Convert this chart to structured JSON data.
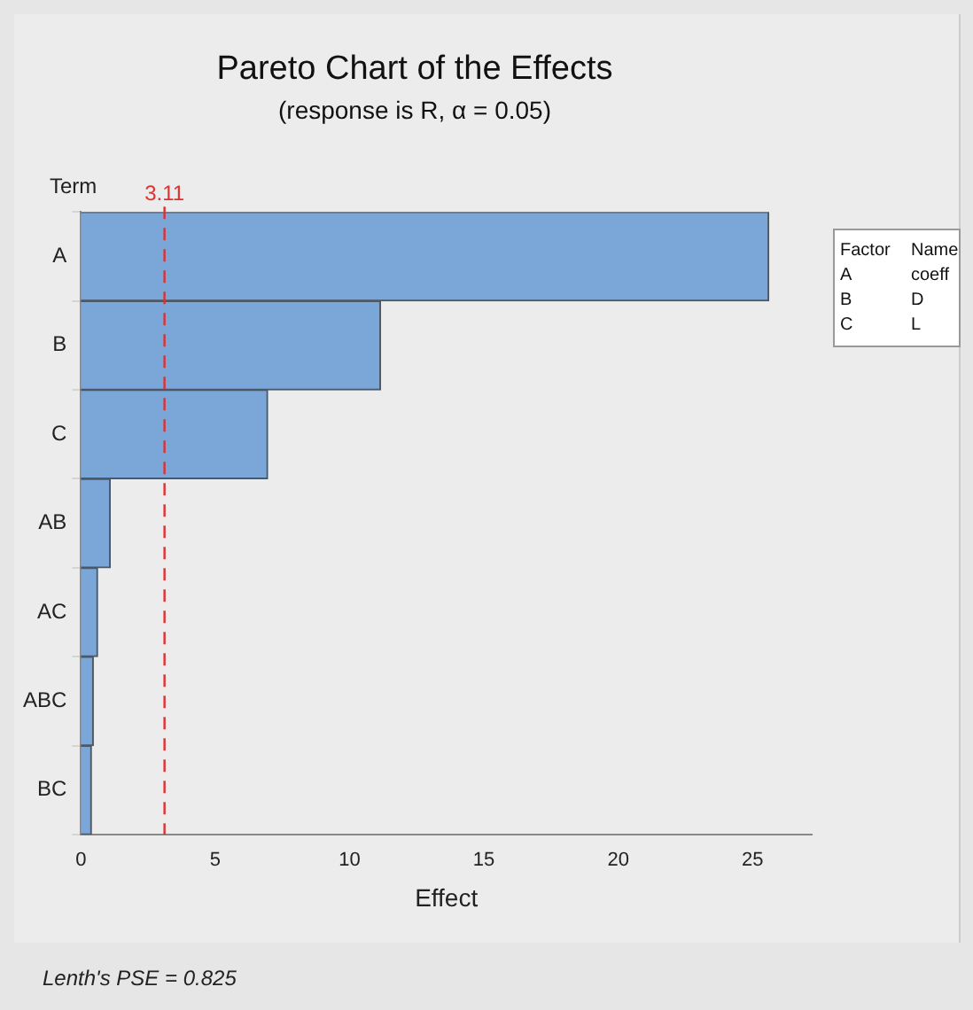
{
  "chart_data": {
    "type": "bar",
    "orientation": "horizontal",
    "title": "Pareto Chart of the Effects",
    "subtitle": "(response is R, α = 0.05)",
    "xlabel": "Effect",
    "ylabel": "Term",
    "categories": [
      "A",
      "B",
      "C",
      "AB",
      "AC",
      "ABC",
      "BC"
    ],
    "values": [
      25.6,
      11.15,
      6.95,
      1.09,
      0.62,
      0.46,
      0.39
    ],
    "color": "#7ba6d8",
    "xlim": [
      0,
      27.2
    ],
    "xticks": [
      0,
      5,
      10,
      15,
      20,
      25
    ],
    "grid": false,
    "legend": false,
    "ref_lines": [
      {
        "axis": "x",
        "value": 3.11,
        "label": "3.11",
        "color": "#e03030",
        "line_style": "dashed"
      }
    ],
    "annotations": [
      "Factor",
      "Name",
      "A",
      "coeff",
      "B",
      "D",
      "C",
      "L",
      "Lenth's PSE = 0.825"
    ]
  }
}
